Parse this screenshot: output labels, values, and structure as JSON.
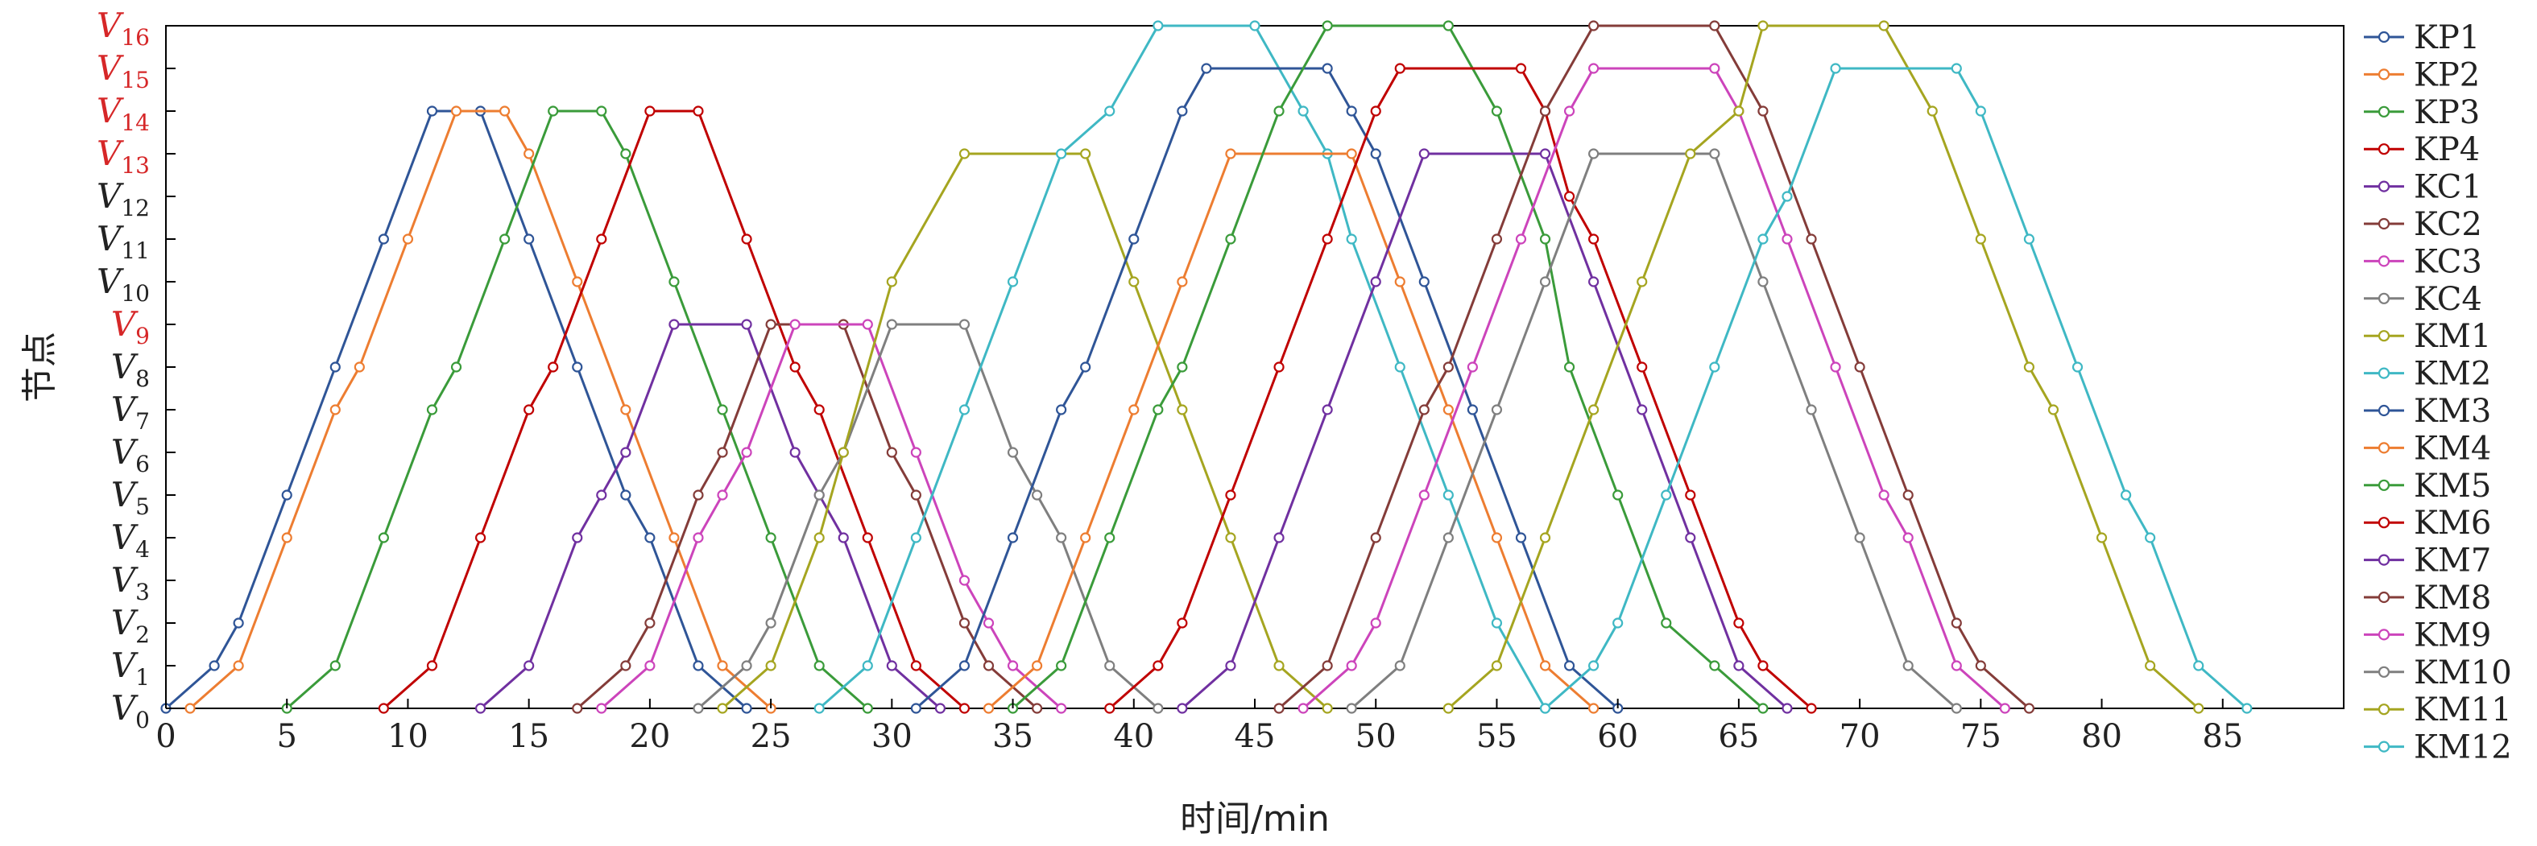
{
  "chart_data": {
    "type": "line",
    "xlabel": "时间/min",
    "ylabel": "节点",
    "xlim": [
      0,
      90
    ],
    "ylim": [
      0,
      16
    ],
    "x_ticks": [
      0,
      5,
      10,
      15,
      20,
      25,
      30,
      35,
      40,
      45,
      50,
      55,
      60,
      65,
      70,
      75,
      80,
      85
    ],
    "y_ticks": [
      {
        "base": "V",
        "sub": "0",
        "highlight": false
      },
      {
        "base": "V",
        "sub": "1",
        "highlight": false
      },
      {
        "base": "V",
        "sub": "2",
        "highlight": false
      },
      {
        "base": "V",
        "sub": "3",
        "highlight": false
      },
      {
        "base": "V",
        "sub": "4",
        "highlight": false
      },
      {
        "base": "V",
        "sub": "5",
        "highlight": false
      },
      {
        "base": "V",
        "sub": "6",
        "highlight": false
      },
      {
        "base": "V",
        "sub": "7",
        "highlight": false
      },
      {
        "base": "V",
        "sub": "8",
        "highlight": false
      },
      {
        "base": "V",
        "sub": "9",
        "highlight": true
      },
      {
        "base": "V",
        "sub": "10",
        "highlight": false
      },
      {
        "base": "V",
        "sub": "11",
        "highlight": false
      },
      {
        "base": "V",
        "sub": "12",
        "highlight": false
      },
      {
        "base": "V",
        "sub": "13",
        "highlight": true
      },
      {
        "base": "V",
        "sub": "14",
        "highlight": true
      },
      {
        "base": "V",
        "sub": "15",
        "highlight": true
      },
      {
        "base": "V",
        "sub": "16",
        "highlight": true
      }
    ],
    "highlight_color": "#d62728",
    "legend_position": "right",
    "grid": false,
    "series": [
      {
        "name": "KP1",
        "color": "#2f5597",
        "points": [
          [
            0,
            0
          ],
          [
            2,
            1
          ],
          [
            3,
            2
          ],
          [
            5,
            5
          ],
          [
            7,
            8
          ],
          [
            9,
            11
          ],
          [
            11,
            14
          ],
          [
            13,
            14
          ],
          [
            15,
            11
          ],
          [
            17,
            8
          ],
          [
            19,
            5
          ],
          [
            20,
            4
          ],
          [
            22,
            1
          ],
          [
            24,
            0
          ]
        ]
      },
      {
        "name": "KP2",
        "color": "#ed7d31",
        "points": [
          [
            1,
            0
          ],
          [
            3,
            1
          ],
          [
            5,
            4
          ],
          [
            7,
            7
          ],
          [
            8,
            8
          ],
          [
            10,
            11
          ],
          [
            12,
            14
          ],
          [
            14,
            14
          ],
          [
            15,
            13
          ],
          [
            17,
            10
          ],
          [
            19,
            7
          ],
          [
            21,
            4
          ],
          [
            23,
            1
          ],
          [
            25,
            0
          ]
        ]
      },
      {
        "name": "KP3",
        "color": "#3a9b3a",
        "points": [
          [
            5,
            0
          ],
          [
            7,
            1
          ],
          [
            9,
            4
          ],
          [
            11,
            7
          ],
          [
            12,
            8
          ],
          [
            14,
            11
          ],
          [
            16,
            14
          ],
          [
            18,
            14
          ],
          [
            19,
            13
          ],
          [
            21,
            10
          ],
          [
            23,
            7
          ],
          [
            25,
            4
          ],
          [
            27,
            1
          ],
          [
            29,
            0
          ]
        ]
      },
      {
        "name": "KP4",
        "color": "#c00000",
        "points": [
          [
            9,
            0
          ],
          [
            11,
            1
          ],
          [
            13,
            4
          ],
          [
            15,
            7
          ],
          [
            16,
            8
          ],
          [
            18,
            11
          ],
          [
            20,
            14
          ],
          [
            22,
            14
          ],
          [
            24,
            11
          ],
          [
            26,
            8
          ],
          [
            27,
            7
          ],
          [
            29,
            4
          ],
          [
            31,
            1
          ],
          [
            33,
            0
          ]
        ]
      },
      {
        "name": "KC1",
        "color": "#7030a0",
        "points": [
          [
            13,
            0
          ],
          [
            15,
            1
          ],
          [
            17,
            4
          ],
          [
            18,
            5
          ],
          [
            19,
            6
          ],
          [
            21,
            9
          ],
          [
            24,
            9
          ],
          [
            26,
            6
          ],
          [
            27,
            5
          ],
          [
            28,
            4
          ],
          [
            30,
            1
          ],
          [
            32,
            0
          ]
        ]
      },
      {
        "name": "KC2",
        "color": "#843c39",
        "points": [
          [
            17,
            0
          ],
          [
            19,
            1
          ],
          [
            20,
            2
          ],
          [
            22,
            5
          ],
          [
            23,
            6
          ],
          [
            25,
            9
          ],
          [
            28,
            9
          ],
          [
            30,
            6
          ],
          [
            31,
            5
          ],
          [
            33,
            2
          ],
          [
            34,
            1
          ],
          [
            36,
            0
          ]
        ]
      },
      {
        "name": "KC3",
        "color": "#cc44bb",
        "points": [
          [
            18,
            0
          ],
          [
            20,
            1
          ],
          [
            22,
            4
          ],
          [
            23,
            5
          ],
          [
            24,
            6
          ],
          [
            26,
            9
          ],
          [
            29,
            9
          ],
          [
            31,
            6
          ],
          [
            33,
            3
          ],
          [
            34,
            2
          ],
          [
            35,
            1
          ],
          [
            37,
            0
          ]
        ]
      },
      {
        "name": "KC4",
        "color": "#7f7f7f",
        "points": [
          [
            22,
            0
          ],
          [
            24,
            1
          ],
          [
            25,
            2
          ],
          [
            27,
            5
          ],
          [
            28,
            6
          ],
          [
            30,
            9
          ],
          [
            33,
            9
          ],
          [
            35,
            6
          ],
          [
            36,
            5
          ],
          [
            37,
            4
          ],
          [
            39,
            1
          ],
          [
            41,
            0
          ]
        ]
      },
      {
        "name": "KM1",
        "color": "#a5a520",
        "points": [
          [
            23,
            0
          ],
          [
            25,
            1
          ],
          [
            27,
            4
          ],
          [
            28,
            6
          ],
          [
            30,
            10
          ],
          [
            33,
            13
          ],
          [
            38,
            13
          ],
          [
            40,
            10
          ],
          [
            42,
            7
          ],
          [
            44,
            4
          ],
          [
            46,
            1
          ],
          [
            48,
            0
          ]
        ]
      },
      {
        "name": "KM2",
        "color": "#3fb8c4",
        "points": [
          [
            27,
            0
          ],
          [
            29,
            1
          ],
          [
            31,
            4
          ],
          [
            33,
            7
          ],
          [
            35,
            10
          ],
          [
            37,
            13
          ],
          [
            39,
            14
          ],
          [
            41,
            16
          ],
          [
            45,
            16
          ],
          [
            47,
            14
          ],
          [
            48,
            13
          ],
          [
            49,
            11
          ],
          [
            51,
            8
          ],
          [
            53,
            5
          ],
          [
            55,
            2
          ],
          [
            57,
            0
          ]
        ]
      },
      {
        "name": "KM3",
        "color": "#2f5597",
        "points": [
          [
            31,
            0
          ],
          [
            33,
            1
          ],
          [
            35,
            4
          ],
          [
            37,
            7
          ],
          [
            38,
            8
          ],
          [
            40,
            11
          ],
          [
            42,
            14
          ],
          [
            43,
            15
          ],
          [
            48,
            15
          ],
          [
            49,
            14
          ],
          [
            50,
            13
          ],
          [
            52,
            10
          ],
          [
            54,
            7
          ],
          [
            56,
            4
          ],
          [
            58,
            1
          ],
          [
            60,
            0
          ]
        ]
      },
      {
        "name": "KM4",
        "color": "#ed7d31",
        "points": [
          [
            34,
            0
          ],
          [
            36,
            1
          ],
          [
            38,
            4
          ],
          [
            40,
            7
          ],
          [
            42,
            10
          ],
          [
            44,
            13
          ],
          [
            49,
            13
          ],
          [
            51,
            10
          ],
          [
            53,
            7
          ],
          [
            55,
            4
          ],
          [
            57,
            1
          ],
          [
            59,
            0
          ]
        ]
      },
      {
        "name": "KM5",
        "color": "#3a9b3a",
        "points": [
          [
            35,
            0
          ],
          [
            37,
            1
          ],
          [
            39,
            4
          ],
          [
            41,
            7
          ],
          [
            42,
            8
          ],
          [
            44,
            11
          ],
          [
            46,
            14
          ],
          [
            48,
            16
          ],
          [
            53,
            16
          ],
          [
            55,
            14
          ],
          [
            57,
            11
          ],
          [
            58,
            8
          ],
          [
            60,
            5
          ],
          [
            62,
            2
          ],
          [
            64,
            1
          ],
          [
            66,
            0
          ]
        ]
      },
      {
        "name": "KM6",
        "color": "#c00000",
        "points": [
          [
            39,
            0
          ],
          [
            41,
            1
          ],
          [
            42,
            2
          ],
          [
            44,
            5
          ],
          [
            46,
            8
          ],
          [
            48,
            11
          ],
          [
            50,
            14
          ],
          [
            51,
            15
          ],
          [
            56,
            15
          ],
          [
            57,
            14
          ],
          [
            58,
            12
          ],
          [
            59,
            11
          ],
          [
            61,
            8
          ],
          [
            63,
            5
          ],
          [
            65,
            2
          ],
          [
            66,
            1
          ],
          [
            68,
            0
          ]
        ]
      },
      {
        "name": "KM7",
        "color": "#7030a0",
        "points": [
          [
            42,
            0
          ],
          [
            44,
            1
          ],
          [
            46,
            4
          ],
          [
            48,
            7
          ],
          [
            50,
            10
          ],
          [
            52,
            13
          ],
          [
            57,
            13
          ],
          [
            59,
            10
          ],
          [
            61,
            7
          ],
          [
            63,
            4
          ],
          [
            65,
            1
          ],
          [
            67,
            0
          ]
        ]
      },
      {
        "name": "KM8",
        "color": "#843c39",
        "points": [
          [
            46,
            0
          ],
          [
            48,
            1
          ],
          [
            50,
            4
          ],
          [
            52,
            7
          ],
          [
            53,
            8
          ],
          [
            55,
            11
          ],
          [
            57,
            14
          ],
          [
            59,
            16
          ],
          [
            64,
            16
          ],
          [
            66,
            14
          ],
          [
            68,
            11
          ],
          [
            70,
            8
          ],
          [
            72,
            5
          ],
          [
            74,
            2
          ],
          [
            75,
            1
          ],
          [
            77,
            0
          ]
        ]
      },
      {
        "name": "KM9",
        "color": "#cc44bb",
        "points": [
          [
            47,
            0
          ],
          [
            49,
            1
          ],
          [
            50,
            2
          ],
          [
            52,
            5
          ],
          [
            54,
            8
          ],
          [
            56,
            11
          ],
          [
            58,
            14
          ],
          [
            59,
            15
          ],
          [
            64,
            15
          ],
          [
            65,
            14
          ],
          [
            67,
            11
          ],
          [
            69,
            8
          ],
          [
            71,
            5
          ],
          [
            72,
            4
          ],
          [
            74,
            1
          ],
          [
            76,
            0
          ]
        ]
      },
      {
        "name": "KM10",
        "color": "#7f7f7f",
        "points": [
          [
            49,
            0
          ],
          [
            51,
            1
          ],
          [
            53,
            4
          ],
          [
            55,
            7
          ],
          [
            57,
            10
          ],
          [
            59,
            13
          ],
          [
            64,
            13
          ],
          [
            66,
            10
          ],
          [
            68,
            7
          ],
          [
            70,
            4
          ],
          [
            72,
            1
          ],
          [
            74,
            0
          ]
        ]
      },
      {
        "name": "KM11",
        "color": "#a5a520",
        "points": [
          [
            53,
            0
          ],
          [
            55,
            1
          ],
          [
            57,
            4
          ],
          [
            59,
            7
          ],
          [
            61,
            10
          ],
          [
            63,
            13
          ],
          [
            65,
            14
          ],
          [
            66,
            16
          ],
          [
            71,
            16
          ],
          [
            73,
            14
          ],
          [
            75,
            11
          ],
          [
            77,
            8
          ],
          [
            78,
            7
          ],
          [
            80,
            4
          ],
          [
            82,
            1
          ],
          [
            84,
            0
          ]
        ]
      },
      {
        "name": "KM12",
        "color": "#3fb8c4",
        "points": [
          [
            57,
            0
          ],
          [
            59,
            1
          ],
          [
            60,
            2
          ],
          [
            62,
            5
          ],
          [
            64,
            8
          ],
          [
            66,
            11
          ],
          [
            67,
            12
          ],
          [
            69,
            15
          ],
          [
            74,
            15
          ],
          [
            75,
            14
          ],
          [
            77,
            11
          ],
          [
            79,
            8
          ],
          [
            81,
            5
          ],
          [
            82,
            4
          ],
          [
            84,
            1
          ],
          [
            86,
            0
          ]
        ]
      }
    ]
  }
}
